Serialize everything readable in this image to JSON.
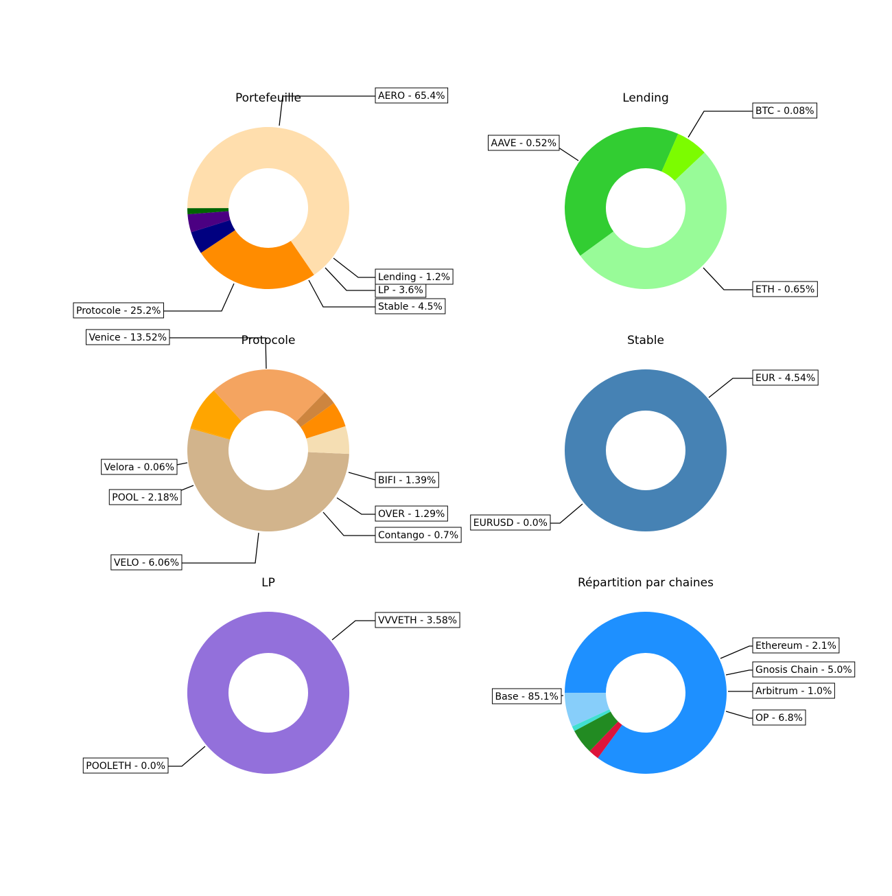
{
  "chart_data": [
    {
      "type": "pie",
      "title": "Portefeuille",
      "slices": [
        {
          "label": "AERO - 65.4%",
          "value": 65.4,
          "color": "#FFDEAD"
        },
        {
          "label": "Protocole - 25.2%",
          "value": 25.2,
          "color": "#FF8C00"
        },
        {
          "label": "Stable - 4.5%",
          "value": 4.5,
          "color": "#000080"
        },
        {
          "label": "LP - 3.6%",
          "value": 3.6,
          "color": "#4B0082"
        },
        {
          "label": "Lending - 1.2%",
          "value": 1.2,
          "color": "#006400"
        }
      ]
    },
    {
      "type": "pie",
      "title": "Lending",
      "slices": [
        {
          "label": "AAVE - 0.52%",
          "value": 0.52,
          "color": "#32CD32"
        },
        {
          "label": "BTC - 0.08%",
          "value": 0.08,
          "color": "#7CFC00"
        },
        {
          "label": "ETH - 0.65%",
          "value": 0.65,
          "color": "#98FB98"
        }
      ]
    },
    {
      "type": "pie",
      "title": "Protocole",
      "slices": [
        {
          "label": "Venice - 13.52%",
          "value": 13.52,
          "color": "#D2B48C"
        },
        {
          "label": "Velora - 0.06%",
          "value": 0.06,
          "color": "#FFA500"
        },
        {
          "label": "POOL - 2.18%",
          "value": 2.18,
          "color": "#FFA500"
        },
        {
          "label": "VELO - 6.06%",
          "value": 6.06,
          "color": "#F4A460"
        },
        {
          "label": "Contango - 0.7%",
          "value": 0.7,
          "color": "#CD853F"
        },
        {
          "label": "OVER - 1.29%",
          "value": 1.29,
          "color": "#FF8C00"
        },
        {
          "label": "BIFI - 1.39%",
          "value": 1.39,
          "color": "#F5DEB3"
        }
      ]
    },
    {
      "type": "pie",
      "title": "Stable",
      "slices": [
        {
          "label": "EUR - 4.54%",
          "value": 4.54,
          "color": "#4682B4"
        },
        {
          "label": "EURUSD - 0.0%",
          "value": 0.0,
          "color": "#4682B4"
        }
      ]
    },
    {
      "type": "pie",
      "title": "LP",
      "slices": [
        {
          "label": "VVVETH - 3.58%",
          "value": 3.58,
          "color": "#9370DB"
        },
        {
          "label": "POOLETH - 0.0%",
          "value": 0.0,
          "color": "#9370DB"
        }
      ]
    },
    {
      "type": "pie",
      "title": "Répartition par chaines",
      "slices": [
        {
          "label": "Base - 85.1%",
          "value": 85.1,
          "color": "#1E90FF"
        },
        {
          "label": "Ethereum - 2.1%",
          "value": 2.1,
          "color": "#DC143C"
        },
        {
          "label": "Gnosis Chain - 5.0%",
          "value": 5.0,
          "color": "#228B22"
        },
        {
          "label": "Arbitrum - 1.0%",
          "value": 1.0,
          "color": "#40E0D0"
        },
        {
          "label": "OP - 6.8%",
          "value": 6.8,
          "color": "#87CEFA"
        }
      ]
    }
  ]
}
